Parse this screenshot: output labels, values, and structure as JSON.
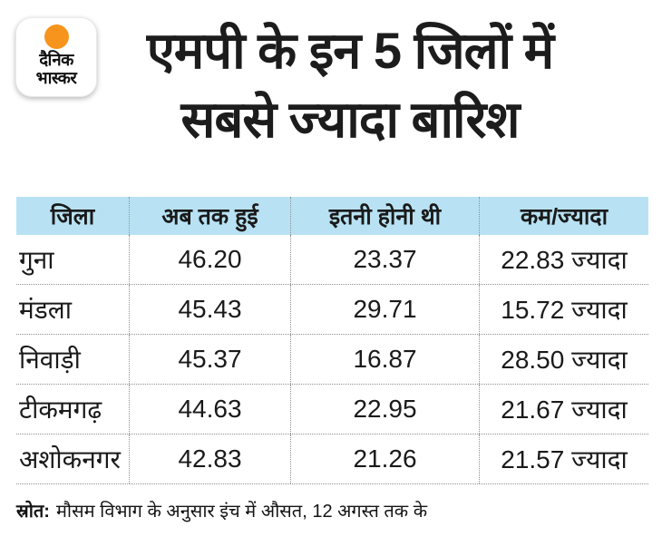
{
  "brand": {
    "logo_line1": "दैनिक",
    "logo_line2": "भास्कर",
    "logo_dot_color": "#f7941e"
  },
  "title": {
    "line1": "एमपी के इन 5 जिलों में",
    "line2": "सबसे ज्यादा बारिश"
  },
  "table": {
    "header_bg": "#b8e2f3",
    "divider_color": "#8f8f8f",
    "columns": [
      "जिला",
      "अब तक हुई",
      "इतनी होनी थी",
      "कम/ज्यादा"
    ],
    "rows": [
      [
        "गुना",
        "46.20",
        "23.37",
        "22.83 ज्यादा"
      ],
      [
        "मंडला",
        "45.43",
        "29.71",
        "15.72 ज्यादा"
      ],
      [
        "निवाड़ी",
        "45.37",
        "16.87",
        "28.50 ज्यादा"
      ],
      [
        "टीकमगढ़",
        "44.63",
        "22.95",
        "21.67 ज्यादा"
      ],
      [
        "अशोकनगर",
        "42.83",
        "21.26",
        "21.57 ज्यादा"
      ]
    ]
  },
  "footer": {
    "label": "स्रोत:",
    "text": "मौसम विभाग के अनुसार इंच में औसत, 12 अगस्त तक के"
  },
  "chart_data": {
    "type": "table",
    "title": "एमपी के इन 5 जिलों में सबसे ज्यादा बारिश",
    "columns": [
      "जिला",
      "अब तक हुई",
      "इतनी होनी थी",
      "कम/ज्यादा"
    ],
    "districts": [
      "गुना",
      "मंडला",
      "निवाड़ी",
      "टीकमगढ़",
      "अशोकनगर"
    ],
    "rain_so_far_inches": [
      46.2,
      45.43,
      45.37,
      44.63,
      42.83
    ],
    "expected_inches": [
      23.37,
      29.71,
      16.87,
      22.95,
      21.26
    ],
    "difference_inches": [
      22.83,
      15.72,
      28.5,
      21.67,
      21.57
    ],
    "difference_label": [
      "22.83 ज्यादा",
      "15.72 ज्यादा",
      "28.50 ज्यादा",
      "21.67 ज्यादा",
      "21.57 ज्यादा"
    ],
    "note": "स्रोत: मौसम विभाग के अनुसार इंच में औसत, 12 अगस्त तक के"
  }
}
